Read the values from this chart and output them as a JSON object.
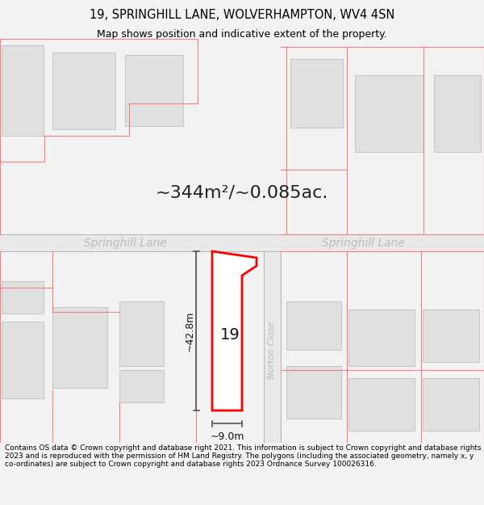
{
  "title_line1": "19, SPRINGHILL LANE, WOLVERHAMPTON, WV4 4SN",
  "title_line2": "Map shows position and indicative extent of the property.",
  "area_label": "~344m²/~0.085ac.",
  "width_label": "~9.0m",
  "height_label": "~42.8m",
  "property_number": "19",
  "street_label_left": "Springhill Lane",
  "street_label_right": "Springhill Lane",
  "road_label": "Norton Close",
  "footer_text": "Contains OS data © Crown copyright and database right 2021. This information is subject to Crown copyright and database rights 2023 and is reproduced with the permission of HM Land Registry. The polygons (including the associated geometry, namely x, y co-ordinates) are subject to Crown copyright and database rights 2023 Ordnance Survey 100026316.",
  "bg_color": "#f2f2f2",
  "map_bg": "#ffffff",
  "building_fill": "#e0e0e0",
  "building_outline": "#c8c8c8",
  "property_fill": "#ffffff",
  "property_outline": "#ff0000",
  "pink_line": "#f08080",
  "gray_line": "#aaaaaa",
  "dim_color": "#555555",
  "street_color": "#bbbbbb",
  "title_fontsize": 10.5,
  "subtitle_fontsize": 9,
  "footer_fontsize": 6.5,
  "area_fontsize": 16,
  "street_fontsize": 10,
  "road_fontsize": 8,
  "dim_fontsize": 9,
  "prop_num_fontsize": 14
}
